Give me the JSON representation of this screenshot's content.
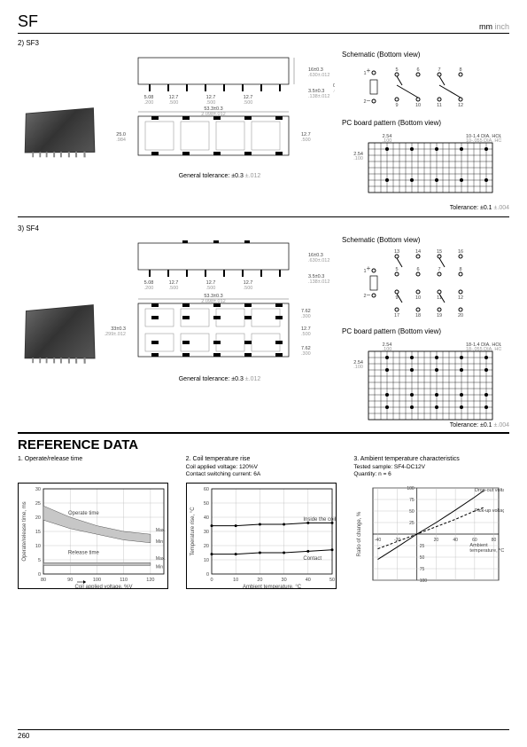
{
  "header": {
    "title": "SF",
    "unit_mm": "mm",
    "unit_inch": "inch"
  },
  "sf3": {
    "title": "2) SF3",
    "side_dims": {
      "w": "53.3±0.3",
      "w_i": "2.098±.012",
      "pitch": "12.7",
      "pitch_i": ".500",
      "h": "16±0.3",
      "h_i": ".630±.012",
      "lead": "3.5±0.3",
      "lead_i": ".138±.012",
      "pinh": "0.5",
      "pinh_i": ".020",
      "first": "5.08",
      "first_i": ".200"
    },
    "bot_dims": {
      "h": "25.0",
      "h_i": ".984",
      "hh": "12.7",
      "hh_i": ".500"
    },
    "tolerance": "General tolerance: ±0.3",
    "tolerance_inch": "±.012",
    "schematic_title": "Schematic (Bottom view)",
    "schematic_pins_top": [
      "5",
      "6",
      "7",
      "8"
    ],
    "schematic_pins_bot": [
      "9",
      "10",
      "11",
      "12"
    ],
    "pcb_title": "PC board pattern (Bottom view)",
    "pcb_holes": "10-1.4 DIA. HOLES",
    "pcb_holes_i": "10-.055 DIA. HOLES",
    "pcb_x": "2.54",
    "pcb_x_i": ".100",
    "pcb_y": "2.54",
    "pcb_y_i": ".100",
    "pcb_tolerance": "Tolerance: ±0.1",
    "pcb_tolerance_inch": "±.004"
  },
  "sf4": {
    "title": "3) SF4",
    "side_dims": {
      "w": "53.3±0.3",
      "w_i": "2.098±.012",
      "pitch": "12.7",
      "pitch_i": ".500",
      "h": "16±0.3",
      "h_i": ".630±.012",
      "lead": "3.5±0.3",
      "lead_i": ".138±.012",
      "first": "5.08",
      "first_i": ".200"
    },
    "bot_dims": {
      "h": "33±0.3",
      "h_i": "1.299±.012",
      "rowpitch": "7.62",
      "rowpitch_i": ".300",
      "mid": "12.7",
      "mid_i": ".500"
    },
    "tolerance": "General tolerance: ±0.3",
    "tolerance_inch": "±.012",
    "schematic_title": "Schematic (Bottom view)",
    "schematic_pins_top": [
      "13",
      "14",
      "15",
      "16"
    ],
    "schematic_pins_mid1": [
      "5",
      "6",
      "7",
      "8"
    ],
    "schematic_pins_mid2": [
      "9",
      "10",
      "11",
      "12"
    ],
    "schematic_pins_bot": [
      "17",
      "18",
      "19",
      "20"
    ],
    "pcb_title": "PC board pattern (Bottom view)",
    "pcb_holes": "18-1.4 DIA. HOLES",
    "pcb_holes_i": "18-.055 DIA. HOLES",
    "pcb_x": "2.54",
    "pcb_x_i": ".100",
    "pcb_y": "2.54",
    "pcb_y_i": ".100",
    "pcb_tolerance": "Tolerance: ±0.1",
    "pcb_tolerance_inch": "±.004"
  },
  "reference": {
    "heading": "REFERENCE DATA",
    "chart1": {
      "title": "1. Operate/release time",
      "xlabel": "Coil applied voltage, %V",
      "ylabel": "Operate/release time, ms",
      "xticks": [
        "80",
        "90",
        "100",
        "110",
        "120"
      ],
      "yticks": [
        "0",
        "5",
        "10",
        "15",
        "20",
        "25",
        "30"
      ],
      "series": [
        {
          "name": "Operate time",
          "label_max": "Max.",
          "label_min": "Min.",
          "pts": [
            [
              80,
              24
            ],
            [
              90,
              20
            ],
            [
              100,
              17
            ],
            [
              110,
              15
            ],
            [
              120,
              14
            ]
          ],
          "pts2": [
            [
              80,
              19
            ],
            [
              90,
              16
            ],
            [
              100,
              14
            ],
            [
              110,
              12
            ],
            [
              120,
              11
            ]
          ],
          "fill": "#c7c7c7"
        },
        {
          "name": "Release time",
          "pts": [
            [
              80,
              4
            ],
            [
              90,
              4
            ],
            [
              100,
              4
            ],
            [
              110,
              4
            ],
            [
              120,
              4
            ]
          ],
          "pts2": [
            [
              80,
              3
            ],
            [
              90,
              3
            ],
            [
              100,
              3
            ],
            [
              110,
              3
            ],
            [
              120,
              3
            ]
          ],
          "fill": "#bdbdbd"
        }
      ],
      "grid_color": "#bbb",
      "line_color": "#000",
      "background_color": "#fff",
      "xlim": [
        80,
        125
      ],
      "ylim": [
        0,
        30
      ]
    },
    "chart2": {
      "title": "2. Coil temperature rise",
      "subtitle": "Coil applied voltage: 120%V\nContact switching current: 6A",
      "xlabel": "Ambient temperature, °C",
      "ylabel": "Temperature rise, °C",
      "xticks": [
        "0",
        "10",
        "20",
        "30",
        "40",
        "50"
      ],
      "yticks": [
        "0",
        "10",
        "20",
        "30",
        "40",
        "50",
        "60"
      ],
      "series": [
        {
          "name": "Inside the coil",
          "pts": [
            [
              0,
              34
            ],
            [
              10,
              34
            ],
            [
              20,
              35
            ],
            [
              30,
              35
            ],
            [
              40,
              36
            ],
            [
              50,
              36
            ]
          ]
        },
        {
          "name": "Contact",
          "pts": [
            [
              0,
              14
            ],
            [
              10,
              14
            ],
            [
              20,
              15
            ],
            [
              30,
              15
            ],
            [
              40,
              16
            ],
            [
              50,
              17
            ]
          ]
        }
      ],
      "grid_color": "#bbb",
      "line_color": "#000",
      "xlim": [
        0,
        50
      ],
      "ylim": [
        0,
        60
      ]
    },
    "chart3": {
      "title": "3. Ambient temperature characteristics",
      "subtitle": "Tested sample: SF4-DC12V\nQuantity: n = 6",
      "xlabel": "Ambient temperature, °C",
      "ylabel": "Ratio of change, %",
      "xticks_neg": [
        "-40",
        "-20",
        "0"
      ],
      "xticks_pos": [
        "20",
        "40",
        "60",
        "80"
      ],
      "yticks_pos": [
        "25",
        "50",
        "75",
        "100"
      ],
      "yticks_neg": [
        "-25",
        "-50",
        "-75",
        "-100"
      ],
      "labels": [
        "Drop-out voltage",
        "Pick-up voltage"
      ],
      "series": [
        {
          "name": "Drop-out voltage",
          "pts": [
            [
              -40,
              -55
            ],
            [
              -20,
              -28
            ],
            [
              0,
              0
            ],
            [
              20,
              25
            ],
            [
              40,
              52
            ],
            [
              60,
              80
            ],
            [
              70,
              95
            ]
          ],
          "dash": false
        },
        {
          "name": "Pick-up voltage",
          "pts": [
            [
              -40,
              -32
            ],
            [
              -20,
              -16
            ],
            [
              0,
              0
            ],
            [
              20,
              16
            ],
            [
              40,
              32
            ],
            [
              60,
              50
            ],
            [
              70,
              58
            ]
          ],
          "dash": true
        }
      ],
      "grid_color": "#bbb",
      "line_color": "#000",
      "xlim": [
        -45,
        85
      ],
      "ylim": [
        -100,
        100
      ]
    }
  },
  "footer": {
    "page": "260"
  }
}
